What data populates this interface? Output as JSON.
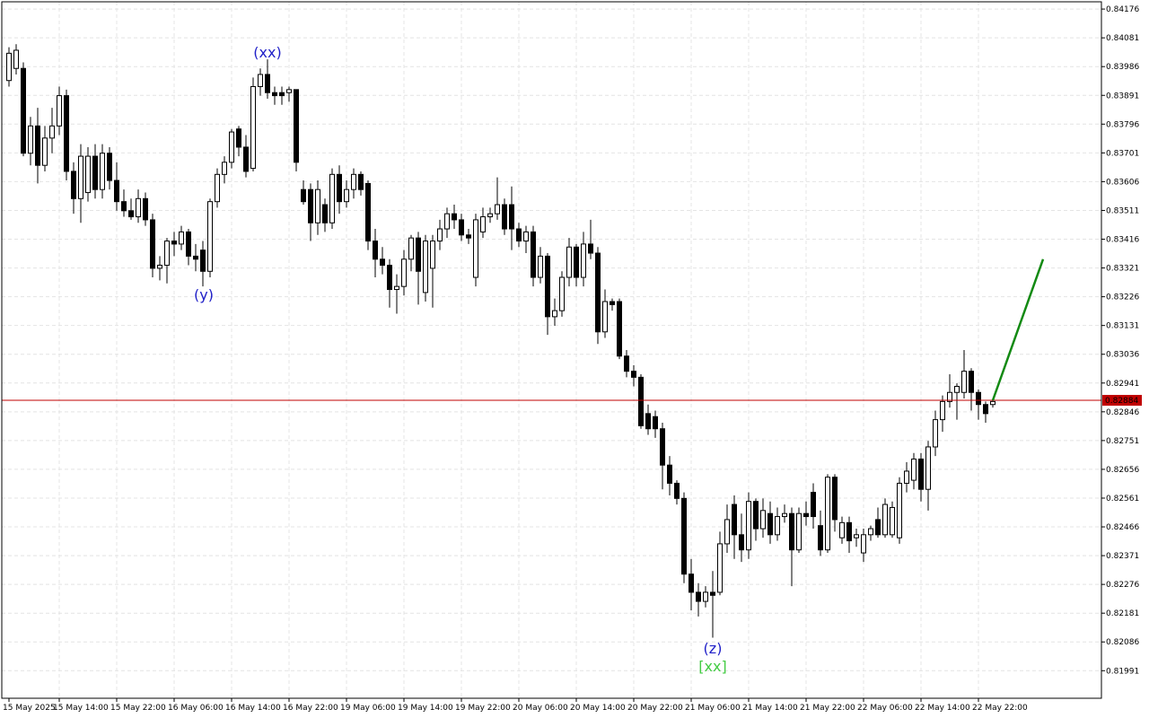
{
  "chart_data": {
    "type": "candlestick",
    "up_color": "#ffffff",
    "down_color": "#000000",
    "edge_color": "#000000",
    "grid": true,
    "ylim": [
      0.819,
      0.842
    ],
    "yticks": [
      0.84176,
      0.84081,
      0.83986,
      0.83891,
      0.83796,
      0.83701,
      0.83606,
      0.83511,
      0.83416,
      0.83321,
      0.83226,
      0.83131,
      0.83036,
      0.82941,
      0.82846,
      0.82751,
      0.82656,
      0.82561,
      0.82466,
      0.82371,
      0.82276,
      0.82181,
      0.82086,
      0.81991
    ],
    "categories": [
      "15 May 2025",
      null,
      null,
      null,
      null,
      null,
      null,
      "15 May 14:00",
      null,
      null,
      null,
      null,
      null,
      null,
      null,
      "15 May 22:00",
      null,
      null,
      null,
      null,
      null,
      null,
      null,
      "16 May 06:00",
      null,
      null,
      null,
      null,
      null,
      null,
      null,
      "16 May 14:00",
      null,
      null,
      null,
      null,
      null,
      null,
      null,
      "16 May 22:00",
      null,
      null,
      null,
      null,
      null,
      null,
      null,
      "19 May 06:00",
      null,
      null,
      null,
      null,
      null,
      null,
      null,
      "19 May 14:00",
      null,
      null,
      null,
      null,
      null,
      null,
      null,
      "19 May 22:00",
      null,
      null,
      null,
      null,
      null,
      null,
      null,
      "20 May 06:00",
      null,
      null,
      null,
      null,
      null,
      null,
      null,
      "20 May 14:00",
      null,
      null,
      null,
      null,
      null,
      null,
      null,
      "20 May 22:00",
      null,
      null,
      null,
      null,
      null,
      null,
      null,
      "21 May 06:00",
      null,
      null,
      null,
      null,
      null,
      null,
      null,
      "21 May 14:00",
      null,
      null,
      null,
      null,
      null,
      null,
      null,
      "21 May 22:00",
      null,
      null,
      null,
      null,
      null,
      null,
      null,
      "22 May 06:00",
      null,
      null,
      null,
      null,
      null,
      null,
      null,
      "22 May 14:00",
      null,
      null,
      null,
      null,
      null,
      null,
      null,
      "22 May 22:00",
      null,
      null
    ],
    "candles": [
      [
        0.8394,
        0.8405,
        0.8392,
        0.8403
      ],
      [
        0.8398,
        0.8406,
        0.8396,
        0.8404
      ],
      [
        0.8398,
        0.84,
        0.8369,
        0.837
      ],
      [
        0.837,
        0.8382,
        0.8366,
        0.8379
      ],
      [
        0.8379,
        0.8385,
        0.836,
        0.8366
      ],
      [
        0.8366,
        0.8379,
        0.8364,
        0.8375
      ],
      [
        0.8375,
        0.8385,
        0.837,
        0.8379
      ],
      [
        0.8379,
        0.8392,
        0.8376,
        0.8389
      ],
      [
        0.8389,
        0.8391,
        0.8361,
        0.8364
      ],
      [
        0.8364,
        0.8367,
        0.835,
        0.8355
      ],
      [
        0.8355,
        0.8373,
        0.8347,
        0.8369
      ],
      [
        0.8357,
        0.8372,
        0.8354,
        0.8369
      ],
      [
        0.8369,
        0.8373,
        0.8355,
        0.8358
      ],
      [
        0.8358,
        0.8373,
        0.8355,
        0.837
      ],
      [
        0.837,
        0.8372,
        0.8358,
        0.8361
      ],
      [
        0.8361,
        0.8367,
        0.8351,
        0.8354
      ],
      [
        0.8354,
        0.8358,
        0.8349,
        0.8351
      ],
      [
        0.8351,
        0.8355,
        0.8348,
        0.8349
      ],
      [
        0.8349,
        0.8358,
        0.8347,
        0.8355
      ],
      [
        0.8355,
        0.8357,
        0.8346,
        0.8348
      ],
      [
        0.8348,
        0.835,
        0.8329,
        0.8332
      ],
      [
        0.8332,
        0.8336,
        0.8328,
        0.8333
      ],
      [
        0.8333,
        0.8342,
        0.8327,
        0.8341
      ],
      [
        0.8341,
        0.8344,
        0.8336,
        0.834
      ],
      [
        0.834,
        0.8346,
        0.8338,
        0.8344
      ],
      [
        0.8344,
        0.8345,
        0.8333,
        0.8336
      ],
      [
        0.8336,
        0.834,
        0.8331,
        0.8335
      ],
      [
        0.8338,
        0.8341,
        0.8326,
        0.8331
      ],
      [
        0.8331,
        0.8355,
        0.8329,
        0.8354
      ],
      [
        0.8354,
        0.8365,
        0.8352,
        0.8363
      ],
      [
        0.8363,
        0.8369,
        0.836,
        0.8367
      ],
      [
        0.8367,
        0.8378,
        0.8365,
        0.8377
      ],
      [
        0.8378,
        0.8379,
        0.8369,
        0.8372
      ],
      [
        0.8372,
        0.8376,
        0.8362,
        0.8364
      ],
      [
        0.8365,
        0.8395,
        0.8364,
        0.8392
      ],
      [
        0.8392,
        0.8398,
        0.8389,
        0.8396
      ],
      [
        0.8396,
        0.8401,
        0.8388,
        0.839
      ],
      [
        0.839,
        0.8392,
        0.8386,
        0.8389
      ],
      [
        0.839,
        0.8392,
        0.8386,
        0.8389
      ],
      [
        0.839,
        0.8392,
        0.8387,
        0.8391
      ],
      [
        0.8391,
        0.8391,
        0.8364,
        0.8367
      ],
      [
        0.8358,
        0.8361,
        0.8353,
        0.8354
      ],
      [
        0.8358,
        0.836,
        0.8341,
        0.8347
      ],
      [
        0.8347,
        0.8361,
        0.8343,
        0.8358
      ],
      [
        0.8353,
        0.8355,
        0.8344,
        0.8347
      ],
      [
        0.8347,
        0.8365,
        0.8345,
        0.8363
      ],
      [
        0.8363,
        0.8366,
        0.835,
        0.8354
      ],
      [
        0.8354,
        0.8361,
        0.8352,
        0.8358
      ],
      [
        0.8358,
        0.8365,
        0.8355,
        0.8363
      ],
      [
        0.8363,
        0.8364,
        0.8356,
        0.8358
      ],
      [
        0.836,
        0.8361,
        0.8338,
        0.8341
      ],
      [
        0.8341,
        0.8345,
        0.8329,
        0.8335
      ],
      [
        0.8335,
        0.8339,
        0.833,
        0.8333
      ],
      [
        0.8333,
        0.8335,
        0.8319,
        0.8325
      ],
      [
        0.8325,
        0.833,
        0.8317,
        0.8326
      ],
      [
        0.8326,
        0.8338,
        0.8323,
        0.8335
      ],
      [
        0.8335,
        0.8343,
        0.8331,
        0.8342
      ],
      [
        0.8342,
        0.8344,
        0.832,
        0.8331
      ],
      [
        0.8324,
        0.8343,
        0.8321,
        0.8341
      ],
      [
        0.8332,
        0.8343,
        0.8319,
        0.8341
      ],
      [
        0.8341,
        0.8348,
        0.8338,
        0.8345
      ],
      [
        0.8345,
        0.8352,
        0.8342,
        0.835
      ],
      [
        0.835,
        0.8353,
        0.8345,
        0.8348
      ],
      [
        0.8348,
        0.835,
        0.8341,
        0.8343
      ],
      [
        0.8343,
        0.8345,
        0.834,
        0.8342
      ],
      [
        0.8329,
        0.835,
        0.8326,
        0.8348
      ],
      [
        0.8344,
        0.8352,
        0.8342,
        0.8349
      ],
      [
        0.8349,
        0.8352,
        0.8347,
        0.835
      ],
      [
        0.835,
        0.8362,
        0.8348,
        0.8353
      ],
      [
        0.8353,
        0.8355,
        0.8343,
        0.8345
      ],
      [
        0.8353,
        0.8359,
        0.8338,
        0.8345
      ],
      [
        0.8345,
        0.8347,
        0.8339,
        0.8341
      ],
      [
        0.8341,
        0.8346,
        0.8337,
        0.8344
      ],
      [
        0.8344,
        0.8346,
        0.8326,
        0.8329
      ],
      [
        0.8329,
        0.8339,
        0.8327,
        0.8336
      ],
      [
        0.8336,
        0.8337,
        0.831,
        0.8316
      ],
      [
        0.8316,
        0.8322,
        0.8313,
        0.8318
      ],
      [
        0.8318,
        0.8331,
        0.8316,
        0.8329
      ],
      [
        0.8329,
        0.8342,
        0.8326,
        0.8339
      ],
      [
        0.8339,
        0.834,
        0.8326,
        0.8329
      ],
      [
        0.8329,
        0.8344,
        0.8326,
        0.834
      ],
      [
        0.834,
        0.8348,
        0.8335,
        0.8337
      ],
      [
        0.8337,
        0.8339,
        0.8307,
        0.8311
      ],
      [
        0.8311,
        0.8325,
        0.8309,
        0.8321
      ],
      [
        0.8321,
        0.8322,
        0.8318,
        0.832
      ],
      [
        0.8321,
        0.8322,
        0.8302,
        0.8303
      ],
      [
        0.8303,
        0.8305,
        0.8296,
        0.8298
      ],
      [
        0.8298,
        0.83,
        0.8293,
        0.8296
      ],
      [
        0.8296,
        0.8297,
        0.8279,
        0.828
      ],
      [
        0.8284,
        0.8287,
        0.8277,
        0.8279
      ],
      [
        0.8283,
        0.8285,
        0.8276,
        0.8279
      ],
      [
        0.8279,
        0.8281,
        0.8259,
        0.8267
      ],
      [
        0.8267,
        0.827,
        0.8257,
        0.8261
      ],
      [
        0.8261,
        0.8262,
        0.8254,
        0.8256
      ],
      [
        0.8256,
        0.8258,
        0.8228,
        0.8231
      ],
      [
        0.8231,
        0.8236,
        0.8219,
        0.8225
      ],
      [
        0.8225,
        0.8228,
        0.8217,
        0.8222
      ],
      [
        0.8222,
        0.8227,
        0.822,
        0.8225
      ],
      [
        0.8225,
        0.8232,
        0.821,
        0.8224
      ],
      [
        0.8225,
        0.8245,
        0.8224,
        0.8241
      ],
      [
        0.8241,
        0.8254,
        0.8238,
        0.8249
      ],
      [
        0.8254,
        0.8257,
        0.8236,
        0.8244
      ],
      [
        0.8244,
        0.8251,
        0.8235,
        0.8239
      ],
      [
        0.8239,
        0.8258,
        0.8236,
        0.8255
      ],
      [
        0.8255,
        0.8256,
        0.8242,
        0.8246
      ],
      [
        0.8246,
        0.8256,
        0.8243,
        0.8252
      ],
      [
        0.8251,
        0.8255,
        0.8241,
        0.8244
      ],
      [
        0.8244,
        0.8253,
        0.8242,
        0.825
      ],
      [
        0.825,
        0.8254,
        0.8248,
        0.8251
      ],
      [
        0.8251,
        0.8253,
        0.8227,
        0.8239
      ],
      [
        0.8239,
        0.8253,
        0.8238,
        0.8251
      ],
      [
        0.8251,
        0.8255,
        0.8247,
        0.825
      ],
      [
        0.8258,
        0.8261,
        0.8246,
        0.825
      ],
      [
        0.8247,
        0.8252,
        0.8237,
        0.8239
      ],
      [
        0.8239,
        0.8264,
        0.8238,
        0.8263
      ],
      [
        0.8263,
        0.8264,
        0.8245,
        0.8249
      ],
      [
        0.8243,
        0.825,
        0.8241,
        0.8248
      ],
      [
        0.8248,
        0.825,
        0.8238,
        0.8242
      ],
      [
        0.8243,
        0.8246,
        0.824,
        0.8244
      ],
      [
        0.8238,
        0.8246,
        0.8235,
        0.8244
      ],
      [
        0.8244,
        0.8247,
        0.8242,
        0.8246
      ],
      [
        0.8249,
        0.8253,
        0.8243,
        0.8244
      ],
      [
        0.8244,
        0.8256,
        0.8243,
        0.8254
      ],
      [
        0.8244,
        0.8255,
        0.8243,
        0.8253
      ],
      [
        0.8243,
        0.8263,
        0.8241,
        0.8261
      ],
      [
        0.8261,
        0.8268,
        0.8258,
        0.8265
      ],
      [
        0.8262,
        0.8271,
        0.8259,
        0.8269
      ],
      [
        0.8269,
        0.8271,
        0.8255,
        0.8259
      ],
      [
        0.8259,
        0.8275,
        0.8252,
        0.8273
      ],
      [
        0.8273,
        0.8285,
        0.827,
        0.8282
      ],
      [
        0.8282,
        0.829,
        0.8278,
        0.8288
      ],
      [
        0.8288,
        0.8297,
        0.8286,
        0.8291
      ],
      [
        0.8291,
        0.8294,
        0.8282,
        0.8293
      ],
      [
        0.8291,
        0.8305,
        0.8289,
        0.8298
      ],
      [
        0.8298,
        0.8299,
        0.8285,
        0.8291
      ],
      [
        0.8291,
        0.8292,
        0.8282,
        0.8287
      ],
      [
        0.8287,
        0.8288,
        0.8281,
        0.8284
      ],
      [
        0.8287,
        0.8289,
        0.8286,
        0.8288
      ]
    ],
    "price_line": 0.82884,
    "price_line_color": "#c00000",
    "projection": {
      "values": [
        0.82884,
        0.8335
      ],
      "color": "#138a13"
    },
    "annotations": [
      {
        "text": "(xx)",
        "color": "#2020c8"
      },
      {
        "text": "(y)",
        "color": "#2020c8"
      },
      {
        "text": "(z)",
        "color": "#2020c8"
      },
      {
        "text": "[xx]",
        "color": "#44cc44"
      }
    ]
  }
}
